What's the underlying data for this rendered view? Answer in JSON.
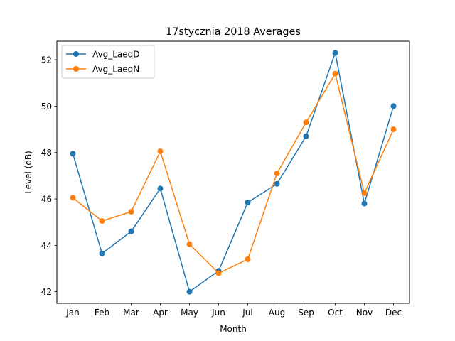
{
  "chart_data": {
    "type": "line",
    "title": "17stycznia 2018 Averages",
    "xlabel": "Month",
    "ylabel": "Level (dB)",
    "categories": [
      "Jan",
      "Feb",
      "Mar",
      "Apr",
      "May",
      "Jun",
      "Jul",
      "Aug",
      "Sep",
      "Oct",
      "Nov",
      "Dec"
    ],
    "ylim": [
      41.5,
      52.8
    ],
    "yticks": [
      42,
      44,
      46,
      48,
      50,
      52
    ],
    "grid": false,
    "legend": "upper-left",
    "series": [
      {
        "name": "Avg_LaeqD",
        "color": "#1f77b4",
        "marker": "circle",
        "values": [
          47.95,
          43.65,
          44.6,
          46.45,
          42.0,
          42.9,
          45.85,
          46.65,
          48.7,
          52.3,
          45.8,
          50.0
        ]
      },
      {
        "name": "Avg_LaeqN",
        "color": "#ff7f0e",
        "marker": "circle",
        "values": [
          46.05,
          45.05,
          45.45,
          48.05,
          44.05,
          42.8,
          43.4,
          47.1,
          49.3,
          51.4,
          46.25,
          49.0
        ]
      }
    ]
  }
}
